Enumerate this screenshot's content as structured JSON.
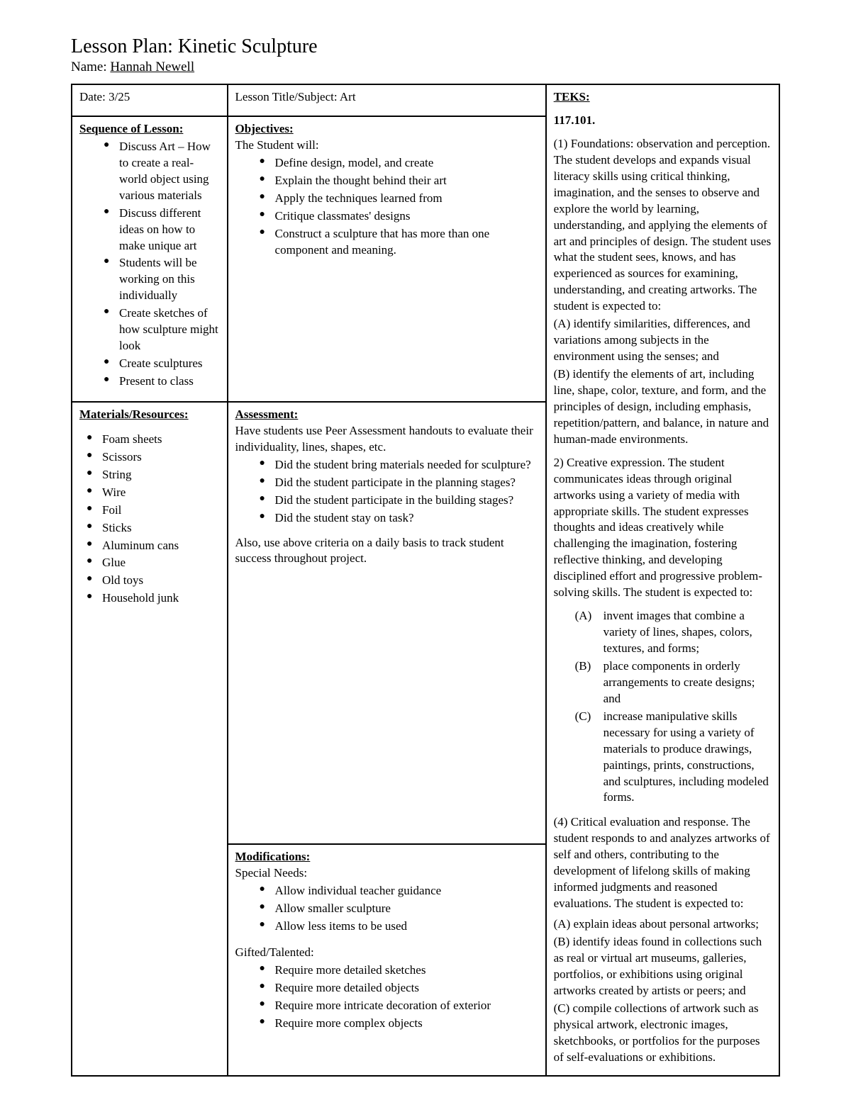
{
  "title": "Lesson Plan: Kinetic Sculpture",
  "nameLabel": "Name: ",
  "nameValue": "Hannah Newell",
  "dateLabel": "Date: ",
  "dateValue": "3/25",
  "lessonTitleLabel": "Lesson Title/Subject: ",
  "lessonTitleValue": "Art",
  "teksHeader": "TEKS:",
  "teksCode": "117.101.",
  "sequenceHeader": "Sequence of Lesson:",
  "sequenceItems": [
    "Discuss Art – How to create a real-world object using various materials",
    "Discuss different ideas on how to make unique art",
    "Students will be working on this individually",
    "Create sketches of how sculpture might look",
    "Create sculptures",
    "Present to class"
  ],
  "objectivesHeader": "Objectives:",
  "objectivesIntro": "The Student will:",
  "objectivesItems": [
    "Define design, model, and create",
    "Explain the thought behind their art",
    "Apply the techniques learned from",
    "Critique classmates' designs",
    "Construct a sculpture that has more than one component and meaning."
  ],
  "materialsHeader": "Materials/Resources:",
  "materialsItems": [
    "Foam sheets",
    "Scissors",
    "String",
    "Wire",
    "Foil",
    "Sticks",
    "Aluminum cans",
    "Glue",
    "Old toys",
    "Household junk"
  ],
  "assessmentHeader": "Assessment:",
  "assessmentIntro": "Have students use Peer Assessment handouts to evaluate their individuality, lines, shapes, etc.",
  "assessmentItems": [
    "Did the student bring materials needed for sculpture?",
    "Did the student participate in the planning stages?",
    "Did the student participate in the building stages?",
    "Did the student stay on task?"
  ],
  "assessmentOutro": "Also, use above criteria on a daily basis to track student success throughout project.",
  "modsHeader": "Modifications:",
  "modsSpecialLabel": "Special Needs:",
  "modsSpecialItems": [
    "Allow individual teacher guidance",
    "Allow smaller sculpture",
    "Allow less items to be used"
  ],
  "modsGiftedLabel": "Gifted/Talented:",
  "modsGiftedItems": [
    "Require more detailed sketches",
    "Require more detailed objects",
    "Require more intricate decoration of exterior",
    "Require more complex objects"
  ],
  "teks1": "(1) Foundations: observation and perception. The student develops and expands visual literacy skills using critical thinking, imagination, and the senses to observe and explore the world by learning, understanding, and applying the elements of art and principles of design. The student uses what the student sees, knows, and has experienced as sources for examining, understanding, and creating artworks. The student is expected to:",
  "teks1a": "(A) identify similarities, differences, and variations among subjects in the environment using the senses; and",
  "teks1b": "(B) identify the elements of art, including line, shape, color, texture, and form, and the principles of design, including emphasis, repetition/pattern, and balance, in nature and human-made environments.",
  "teks2": "2) Creative expression. The student communicates ideas through original artworks using a variety of media with appropriate skills. The student expresses thoughts and ideas creatively while challenging the imagination, fostering reflective thinking, and developing disciplined effort and progressive problem-solving skills. The student is expected to:",
  "teks2a": {
    "lbl": "(A)",
    "txt": "invent images that combine a variety of lines, shapes, colors, textures, and forms;"
  },
  "teks2b": {
    "lbl": "(B)",
    "txt": "place components in orderly arrangements to create designs; and"
  },
  "teks2c": {
    "lbl": "(C)",
    "txt": "increase manipulative skills necessary for using a variety of materials to produce drawings, paintings, prints, constructions, and sculptures, including modeled forms."
  },
  "teks4": "(4) Critical evaluation and response. The student responds to and analyzes artworks of self and others, contributing to the development of lifelong skills of making informed judgments and reasoned evaluations. The student is expected to:",
  "teks4a": "(A) explain ideas about personal artworks;",
  "teks4b": "(B) identify ideas found in collections such as real or virtual art museums, galleries, portfolios, or exhibitions using original artworks created by artists or peers; and",
  "teks4c": "(C) compile collections of artwork such as physical artwork, electronic images, sketchbooks, or portfolios for the purposes of self-evaluations or exhibitions."
}
